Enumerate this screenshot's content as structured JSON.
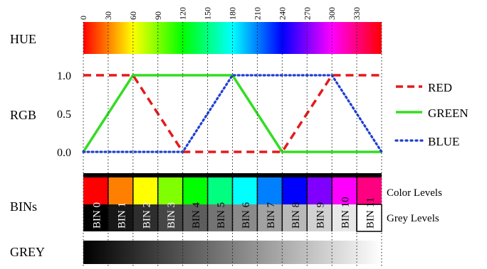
{
  "labels": {
    "hue": "HUE",
    "rgb": "RGB",
    "bins": "BINs",
    "grey": "GREY",
    "color_levels": "Color Levels",
    "grey_levels": "Grey Levels"
  },
  "hue_ticks": [
    "0",
    "30",
    "60",
    "90",
    "120",
    "150",
    "180",
    "210",
    "240",
    "270",
    "300",
    "330"
  ],
  "chart_data": {
    "type": "line",
    "x": [
      0,
      30,
      60,
      90,
      120,
      150,
      180,
      210,
      240,
      270,
      300,
      330,
      360
    ],
    "xlim": [
      0,
      360
    ],
    "ylim": [
      0,
      1
    ],
    "y_ticks": [
      "0.0",
      "0.5",
      "1.0"
    ],
    "grid": "vertical dotted every 30",
    "legend_position": "right",
    "series": [
      {
        "name": "RED",
        "color": "#e41a1c",
        "style": "dashed",
        "points": [
          [
            0,
            1
          ],
          [
            60,
            1
          ],
          [
            120,
            0
          ],
          [
            240,
            0
          ],
          [
            300,
            1
          ],
          [
            360,
            1
          ]
        ]
      },
      {
        "name": "GREEN",
        "color": "#33dd22",
        "style": "solid",
        "points": [
          [
            0,
            0
          ],
          [
            60,
            1
          ],
          [
            180,
            1
          ],
          [
            240,
            0
          ],
          [
            360,
            0
          ]
        ]
      },
      {
        "name": "BLUE",
        "color": "#1f3fd1",
        "style": "dotted",
        "points": [
          [
            0,
            0
          ],
          [
            120,
            0
          ],
          [
            180,
            1
          ],
          [
            300,
            1
          ],
          [
            360,
            0
          ]
        ]
      }
    ]
  },
  "bins": [
    {
      "label": "BIN 0",
      "color": "#ff0000",
      "grey": "#000000",
      "text_color": "#ffffff"
    },
    {
      "label": "BIN 1",
      "color": "#ff8000",
      "grey": "#171717",
      "text_color": "#ffffff"
    },
    {
      "label": "BIN 2",
      "color": "#ffff00",
      "grey": "#2e2e2e",
      "text_color": "#ffffff"
    },
    {
      "label": "BIN 3",
      "color": "#80ff00",
      "grey": "#464646",
      "text_color": "#ffffff"
    },
    {
      "label": "BIN 4",
      "color": "#00ff00",
      "grey": "#5d5d5d",
      "text_color": "#000000"
    },
    {
      "label": "BIN 5",
      "color": "#00ff80",
      "grey": "#747474",
      "text_color": "#000000"
    },
    {
      "label": "BIN 6",
      "color": "#00ffff",
      "grey": "#8b8b8b",
      "text_color": "#000000"
    },
    {
      "label": "BIN 7",
      "color": "#0080ff",
      "grey": "#a2a2a2",
      "text_color": "#000000"
    },
    {
      "label": "BIN 8",
      "color": "#0000ff",
      "grey": "#b9b9b9",
      "text_color": "#000000"
    },
    {
      "label": "BIN 9",
      "color": "#8000ff",
      "grey": "#d1d1d1",
      "text_color": "#000000"
    },
    {
      "label": "BIN 10",
      "color": "#ff00ff",
      "grey": "#e8e8e8",
      "text_color": "#000000"
    },
    {
      "label": "BIN 11",
      "color": "#ff0080",
      "grey": "#ffffff",
      "text_color": "#000000"
    }
  ]
}
